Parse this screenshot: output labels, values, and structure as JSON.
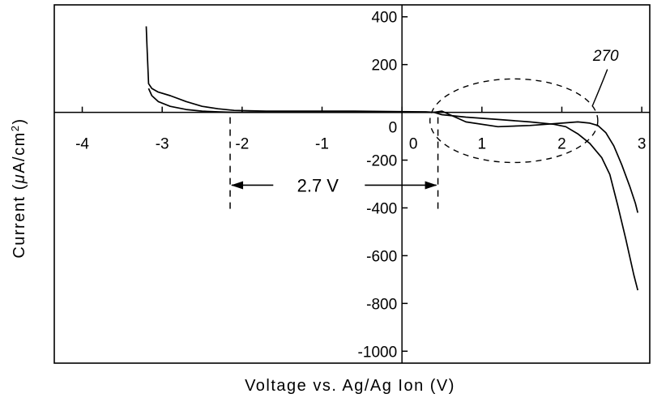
{
  "chart_data": {
    "type": "line",
    "title": "",
    "xlabel": "Voltage vs. Ag/Ag Ion (V)",
    "ylabel_prefix": "Current (",
    "ylabel_mu": "μ",
    "ylabel_unit": "A/cm",
    "ylabel_sup": "2",
    "ylabel_suffix": ")",
    "xlim": [
      -4.35,
      3.1
    ],
    "ylim": [
      -1050,
      450
    ],
    "x_ticks": [
      {
        "value": -4,
        "label": "-4"
      },
      {
        "value": -3,
        "label": "-3"
      },
      {
        "value": -2,
        "label": "-2"
      },
      {
        "value": -1,
        "label": "-1"
      },
      {
        "value": 0,
        "label": "0"
      },
      {
        "value": 1,
        "label": "1"
      },
      {
        "value": 2,
        "label": "2"
      },
      {
        "value": 3,
        "label": "3"
      }
    ],
    "y_ticks": [
      {
        "value": 400,
        "label": "400"
      },
      {
        "value": 200,
        "label": "200"
      },
      {
        "value": 0,
        "label": "0"
      },
      {
        "value": -200,
        "label": "-200"
      },
      {
        "value": -400,
        "label": "-400"
      },
      {
        "value": -600,
        "label": "-600"
      },
      {
        "value": -800,
        "label": "-800"
      },
      {
        "value": -1000,
        "label": "-1000"
      }
    ],
    "series": [
      {
        "x": [
          -3.2,
          -3.19,
          -3.17,
          -3.13,
          -3.05,
          -2.9,
          -2.7,
          -2.5,
          -2.3,
          -2.1,
          -1.7,
          -1.2,
          -0.6,
          0.0,
          0.3,
          0.4,
          0.5,
          0.8,
          1.2,
          1.6,
          1.9,
          2.05,
          2.2,
          2.35,
          2.5,
          2.6,
          2.7,
          2.8,
          2.9,
          2.95
        ],
        "y": [
          360,
          280,
          120,
          100,
          85,
          70,
          45,
          25,
          15,
          8,
          5,
          5,
          5,
          3,
          2,
          0,
          -10,
          -20,
          -30,
          -40,
          -50,
          -60,
          -90,
          -130,
          -190,
          -260,
          -390,
          -530,
          -680,
          -745
        ]
      },
      {
        "x": [
          -3.17,
          -3.13,
          -3.05,
          -2.9,
          -2.7,
          -2.5,
          -2.3,
          -2.1,
          -1.7,
          -1.2,
          -0.6,
          0.0,
          0.3,
          0.4,
          0.5,
          0.8,
          1.2,
          1.6,
          2.0,
          2.2,
          2.35,
          2.45,
          2.55,
          2.65,
          2.75,
          2.85,
          2.92,
          2.95
        ],
        "y": [
          100,
          70,
          45,
          25,
          12,
          5,
          2,
          0,
          0,
          0,
          0,
          0,
          0,
          0,
          5,
          -40,
          -60,
          -55,
          -45,
          -40,
          -45,
          -55,
          -85,
          -140,
          -220,
          -310,
          -380,
          -420
        ]
      }
    ],
    "annotations": {
      "gap_label": "2.7 V",
      "gap_range": [
        -2.15,
        0.45
      ],
      "gap_y": -305,
      "dash_top": 0,
      "dash_bottom": -420,
      "ellipse_center": [
        1.4,
        -35
      ],
      "ellipse_radius": [
        1.05,
        175
      ],
      "ref_label": "270",
      "ref_label_at": [
        2.55,
        215
      ],
      "leader": [
        [
          2.57,
          180
        ],
        [
          2.47,
          95
        ],
        [
          2.38,
          25
        ]
      ]
    },
    "grid": false,
    "legend": "none"
  }
}
